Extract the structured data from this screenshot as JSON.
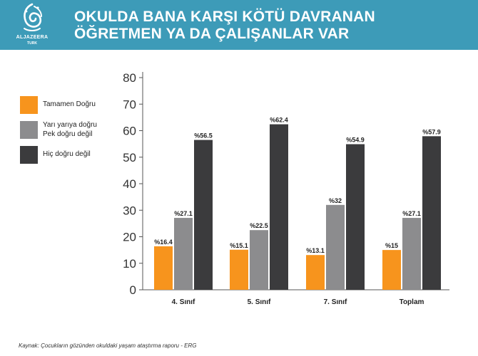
{
  "header": {
    "logo_line1": "ALJAZEERA",
    "logo_line2": "TURK",
    "title_line1": "OKULDA BANA KARŞI KÖTÜ DAVRANAN",
    "title_line2": "ÖĞRETMEN YA DA ÇALIŞANLAR VAR",
    "color": "#3d9bb8"
  },
  "legend": [
    {
      "line1": "Tamamen Doğru",
      "line2": "",
      "color": "#f7941d"
    },
    {
      "line1": "Yarı yarıya doğru",
      "line2": "Pek doğru değil",
      "color": "#8c8c8e"
    },
    {
      "line1": "Hiç doğru değil",
      "line2": "",
      "color": "#3b3b3d"
    }
  ],
  "chart_data": {
    "type": "bar",
    "title": "OKULDA BANA KARŞI KÖTÜ DAVRANAN ÖĞRETMEN YA DA ÇALIŞANLAR VAR",
    "categories": [
      "4. Sınıf",
      "5. Sınıf",
      "7. Sınıf",
      "Toplam"
    ],
    "series": [
      {
        "name": "Tamamen Doğru",
        "values": [
          16.4,
          15.1,
          13.1,
          15
        ],
        "labels": [
          "%16.4",
          "%15.1",
          "%13.1",
          "%15"
        ],
        "color": "#f7941d"
      },
      {
        "name": "Yarı yarıya doğru Pek doğru değil",
        "values": [
          27.1,
          22.5,
          32,
          27.1
        ],
        "labels": [
          "%27.1",
          "%22.5",
          "%32",
          "%27.1"
        ],
        "color": "#8c8c8e"
      },
      {
        "name": "Hiç doğru değil",
        "values": [
          56.5,
          62.4,
          54.9,
          57.9
        ],
        "labels": [
          "%56.5",
          "%62.4",
          "%54.9",
          "%57.9"
        ],
        "color": "#3b3b3d"
      }
    ],
    "ylim": [
      0,
      80
    ],
    "yticks": [
      0,
      10,
      20,
      30,
      40,
      50,
      60,
      70,
      80
    ],
    "xlabel": "",
    "ylabel": "",
    "grid": false,
    "legend_position": "left"
  },
  "source": "Kaynak: Çocukların gözünden okuldaki yaşam ataştırma raporu - ERG"
}
